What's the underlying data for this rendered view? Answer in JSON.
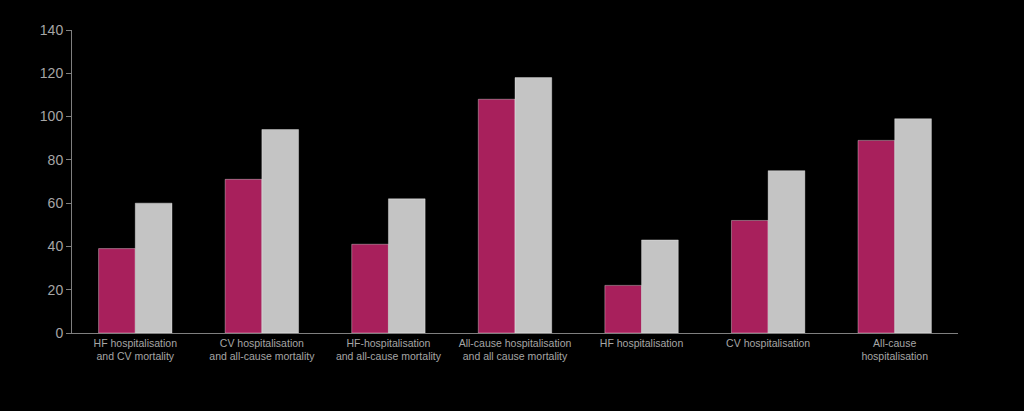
{
  "chart_data": {
    "type": "bar",
    "categories": [
      "HF hospitalisation\nand CV mortality",
      "CV hospitalisation\nand all-cause mortality",
      "HF-hospitalisation\nand all-cause mortality",
      "All-cause hospitalisation\nand all cause mortality",
      "HF hospitalisation",
      "CV hospitalisation",
      "All-cause\nhospitalisation"
    ],
    "series": [
      {
        "color": "#a8205c",
        "values": [
          39,
          71,
          41,
          108,
          22,
          52,
          89
        ]
      },
      {
        "color": "#c4c4c4",
        "values": [
          60,
          94,
          62,
          118,
          43,
          75,
          99
        ]
      }
    ],
    "ylim": [
      0,
      140
    ],
    "yticks": [
      0,
      20,
      40,
      60,
      80,
      100,
      120,
      140
    ],
    "grid": false
  }
}
